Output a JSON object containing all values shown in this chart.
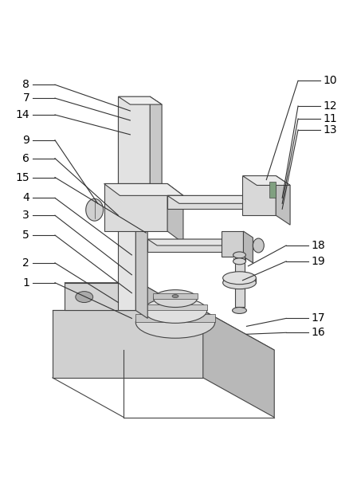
{
  "fig_width": 4.43,
  "fig_height": 6.11,
  "dpi": 100,
  "bg_color": "#ffffff",
  "line_color": "#444444",
  "lw": 0.8,
  "label_color": "#000000",
  "label_fontsize": 10
}
